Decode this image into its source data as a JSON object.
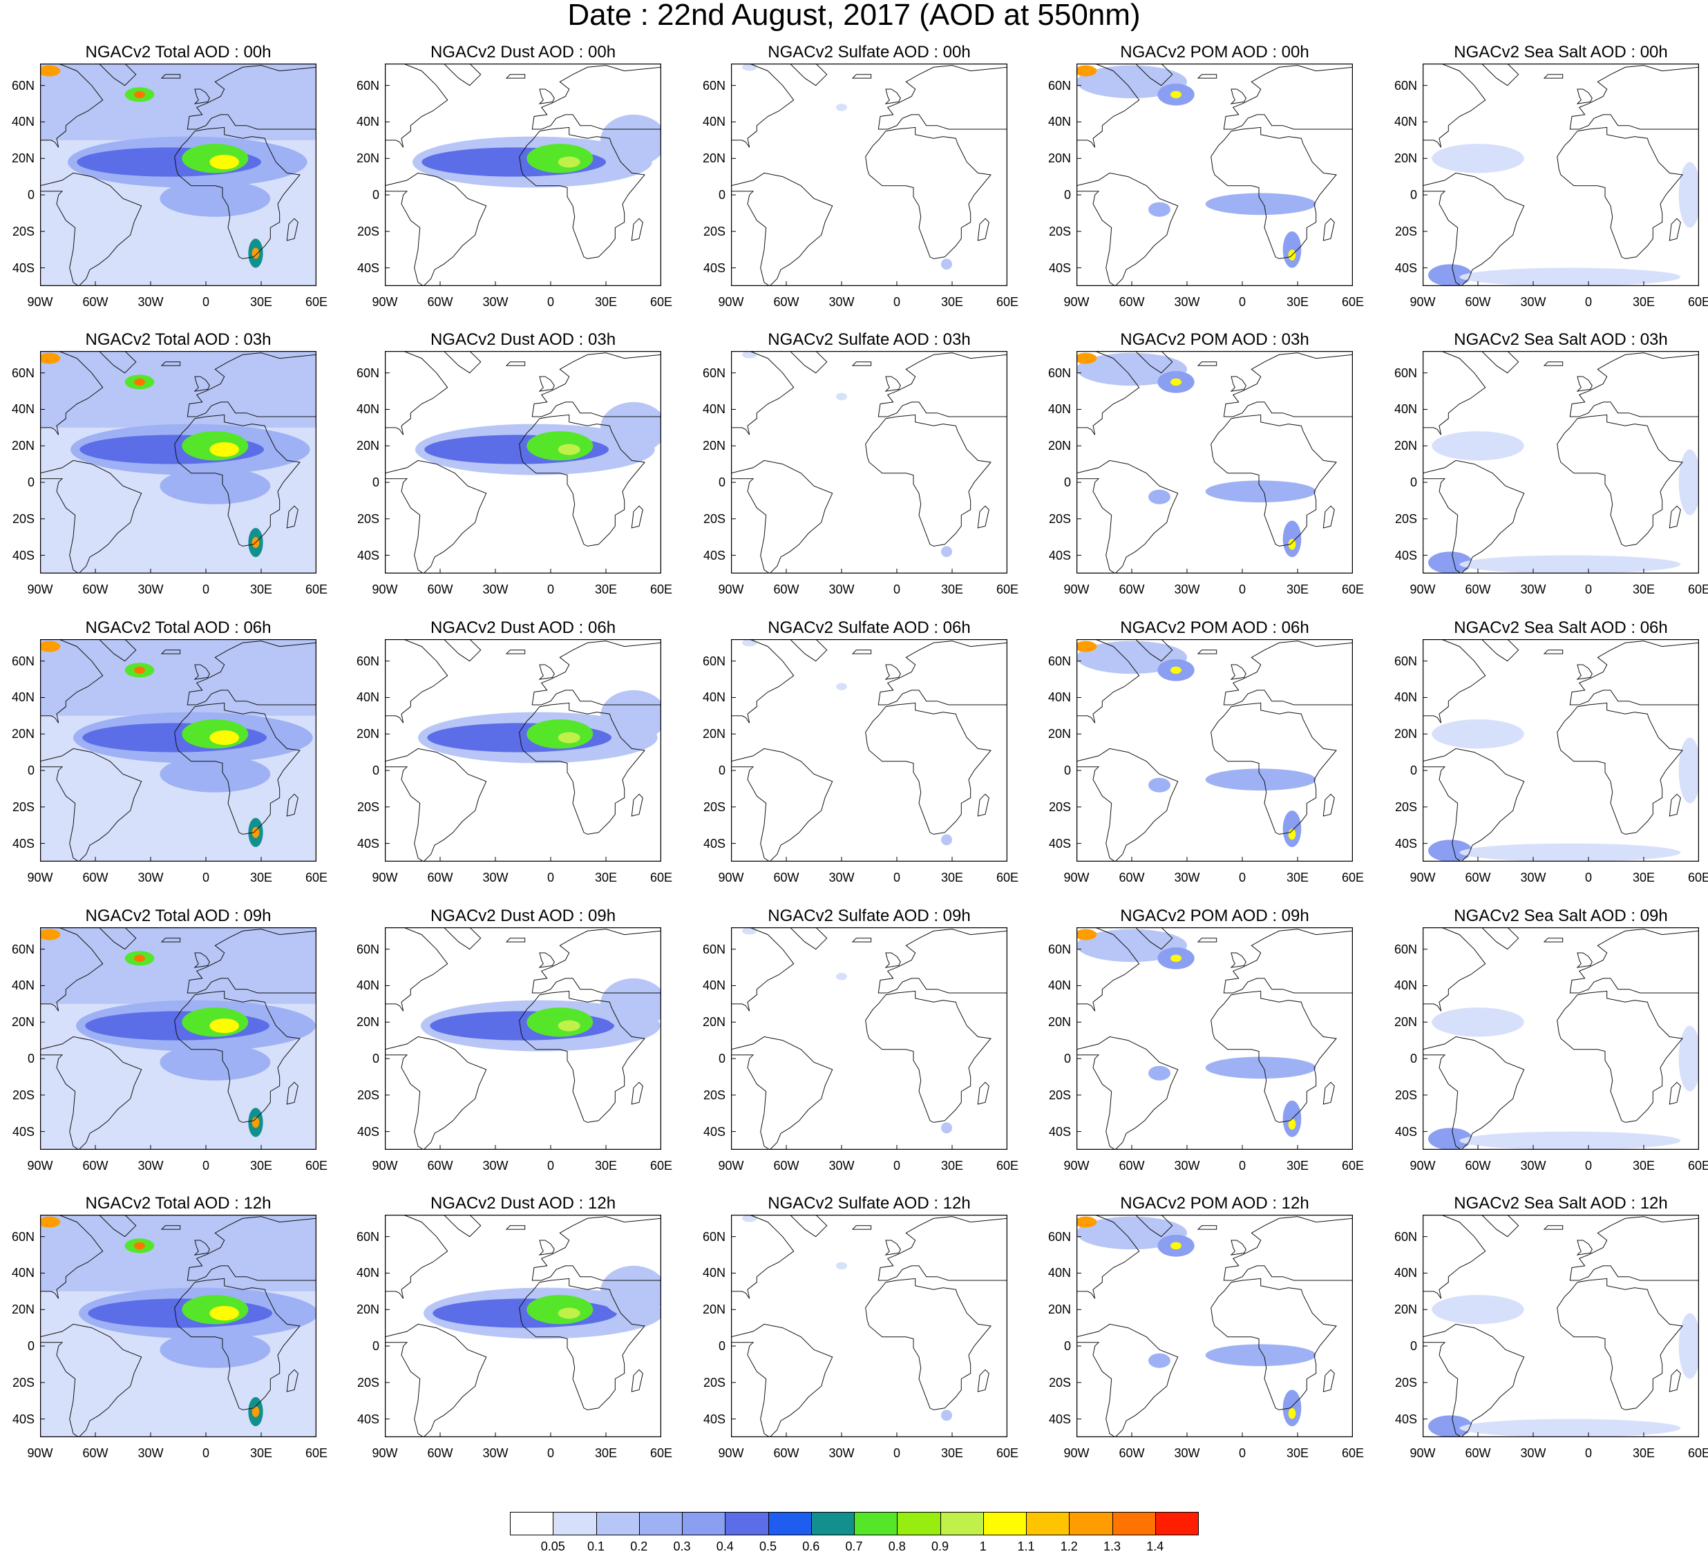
{
  "title": "Date : 22nd August, 2017 (AOD at 550nm)",
  "panel_titles": [
    [
      "NGACv2 Total AOD : 00h",
      "NGACv2 Dust AOD : 00h",
      "NGACv2 Sulfate AOD : 00h",
      "NGACv2 POM AOD : 00h",
      "NGACv2 Sea Salt AOD : 00h"
    ],
    [
      "NGACv2 Total AOD : 03h",
      "NGACv2 Dust AOD : 03h",
      "NGACv2 Sulfate AOD : 03h",
      "NGACv2 POM AOD : 03h",
      "NGACv2 Sea Salt AOD : 03h"
    ],
    [
      "NGACv2 Total AOD : 06h",
      "NGACv2 Dust AOD : 06h",
      "NGACv2 Sulfate AOD : 06h",
      "NGACv2 POM AOD : 06h",
      "NGACv2 Sea Salt AOD : 06h"
    ],
    [
      "NGACv2 Total AOD : 09h",
      "NGACv2 Dust AOD : 09h",
      "NGACv2 Sulfate AOD : 09h",
      "NGACv2 POM AOD : 09h",
      "NGACv2 Sea Salt  AOD : 09h"
    ],
    [
      "NGACv2 Total AOD  : 12h",
      "NGACv2 Dust AOD : 12h",
      "NGACv2 Sulfate AOD : 12h",
      "NGACv2 POM  AOD : 12h",
      "NGACv2 Sea Salt  AOD : 12h"
    ]
  ],
  "lat_ticks": [
    "60N",
    "40N",
    "20N",
    "0",
    "20S",
    "40S"
  ],
  "lon_ticks": [
    "90W",
    "60W",
    "30W",
    "0",
    "30E",
    "60E"
  ],
  "colorbar": {
    "labels": [
      "0.05",
      "0.1",
      "0.2",
      "0.3",
      "0.4",
      "0.5",
      "0.6",
      "0.7",
      "0.8",
      "0.9",
      "1",
      "1.1",
      "1.2",
      "1.3",
      "1.4"
    ],
    "colors": [
      "#ffffff",
      "#d7e0fb",
      "#b7c6f6",
      "#9eb1f4",
      "#8a9ef2",
      "#5c6de8",
      "#1f5cf0",
      "#11908e",
      "#55e62a",
      "#97ec10",
      "#c2f04a",
      "#fffb00",
      "#ffc400",
      "#ff9c00",
      "#ff7400",
      "#ff1e00"
    ]
  }
}
